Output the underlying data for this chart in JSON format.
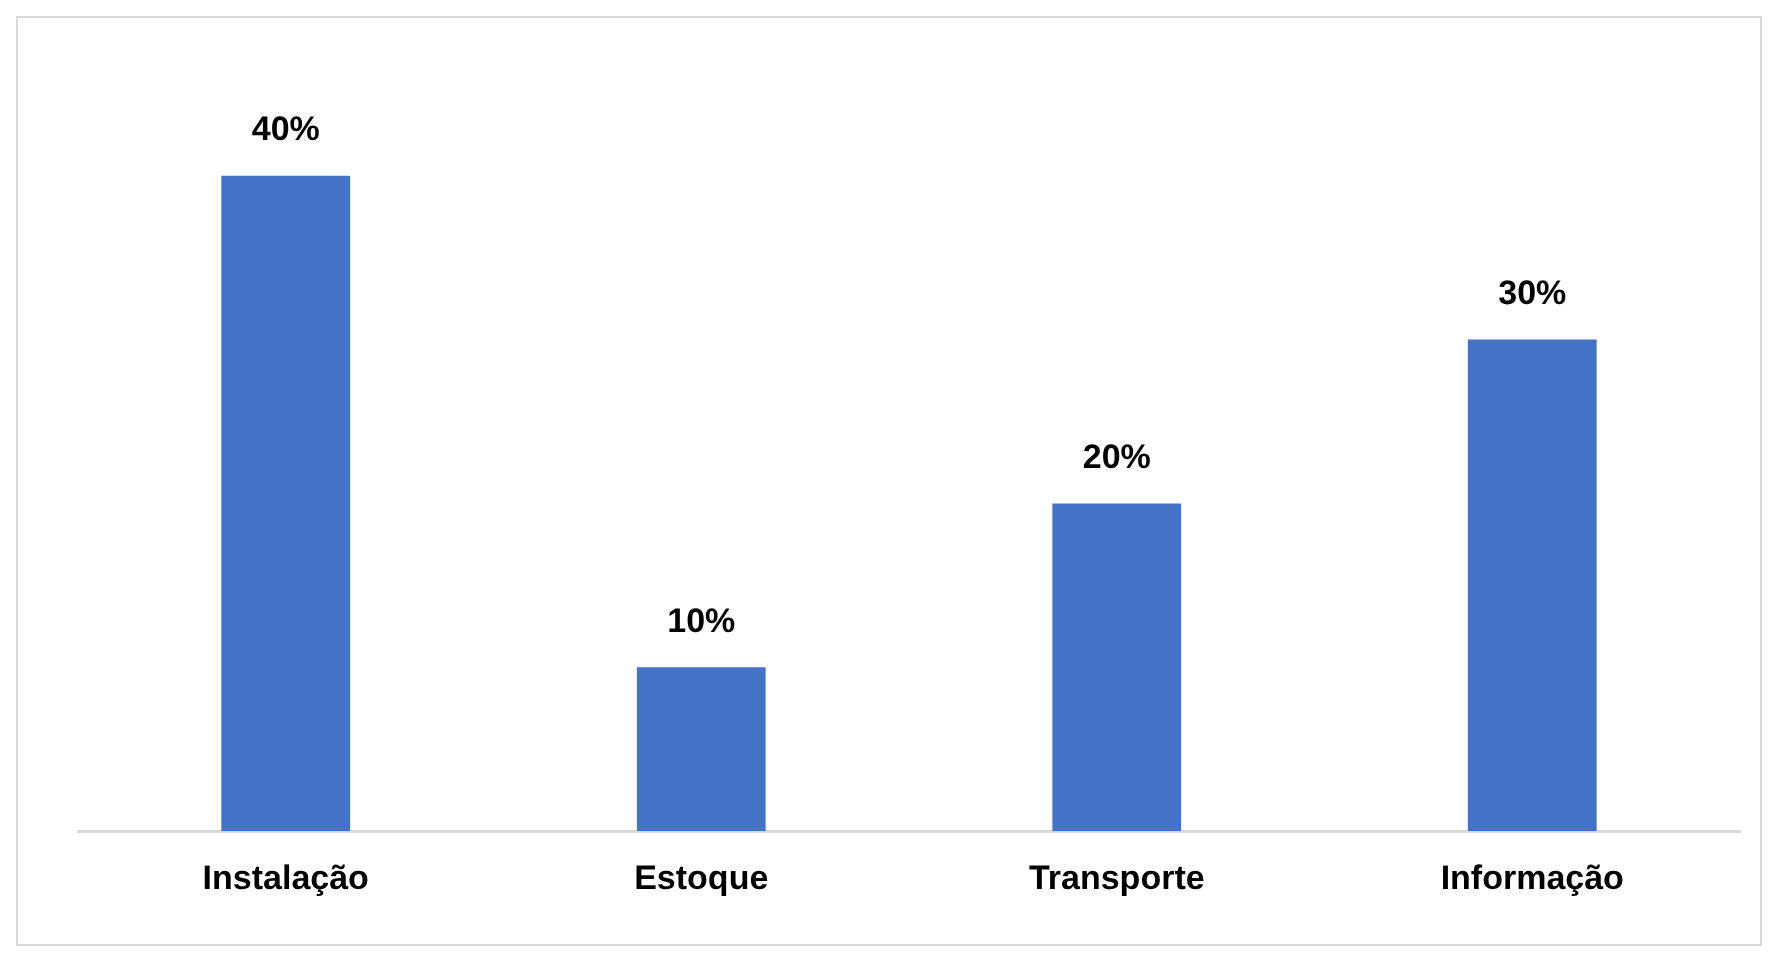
{
  "chart_data": {
    "type": "bar",
    "categories": [
      "Instalação",
      "Estoque",
      "Transporte",
      "Informação"
    ],
    "values": [
      40,
      10,
      20,
      30
    ],
    "color": "#4472c4",
    "tick_labels": "x",
    "value_labels": [
      "40%",
      "10%",
      "20%",
      "30%"
    ],
    "grid": false,
    "legend": false
  }
}
